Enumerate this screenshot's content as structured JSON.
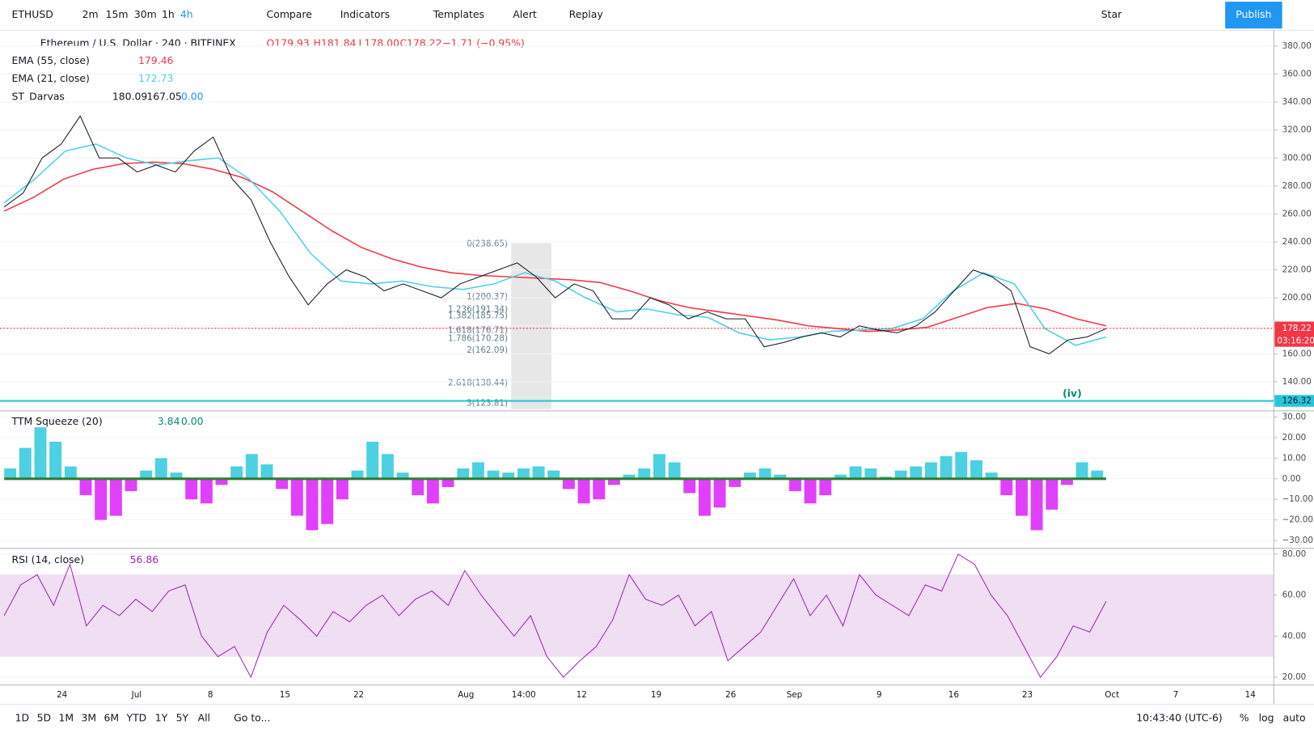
{
  "toolbar": {
    "symbol": "ETHUSD",
    "intervals": [
      "2m",
      "15m",
      "30m",
      "1h",
      "4h"
    ],
    "compare": "Compare",
    "indicators": "Indicators",
    "templates": "Templates",
    "alert": "Alert",
    "replay": "Replay",
    "star": "Star",
    "publish": "Publish"
  },
  "legend": {
    "title": "Ethereum / U.S. Dollar · 240 · BITFINEX",
    "open": "O179.93",
    "high": "H181.84",
    "low": "L178.00",
    "close": "C178.22",
    "change": "−1.71 (−0.95%)",
    "ema55_label": "EMA (55, close)",
    "ema55_value": 179.46,
    "ema21_label": "EMA (21, close)",
    "ema21_value": 172.73,
    "darvas_label": "ST_Darvas",
    "darvas_high": 180.09,
    "darvas_low": 167.05,
    "darvas_third": "0.00"
  },
  "price": {
    "ylim": [
      120.4,
      391.4
    ],
    "yticks": [
      {
        "value": 380,
        "label": "380.00"
      },
      {
        "value": 360,
        "label": "360.00"
      },
      {
        "value": 340,
        "label": "340.00"
      },
      {
        "value": 320,
        "label": "320.00"
      },
      {
        "value": 300,
        "label": "300.00"
      },
      {
        "value": 280,
        "label": "280.00"
      },
      {
        "value": 260,
        "label": "260.00"
      },
      {
        "value": 240,
        "label": "240.00"
      },
      {
        "value": 220,
        "label": "220.00"
      },
      {
        "value": 200,
        "label": "200.00"
      },
      {
        "value": 180,
        "label": "180.00"
      },
      {
        "value": 160,
        "label": "160.00"
      },
      {
        "value": 140,
        "label": "140.00"
      }
    ],
    "close": [
      265,
      275,
      300,
      310,
      330,
      300,
      300,
      290,
      295,
      290,
      305,
      315,
      285,
      270,
      240,
      215,
      195,
      210,
      220,
      215,
      205,
      210,
      205,
      200,
      210,
      215,
      220,
      225,
      215,
      200,
      210,
      205,
      185,
      185,
      200,
      195,
      185,
      190,
      185,
      185,
      165,
      168,
      172,
      175,
      172,
      180,
      177,
      175,
      180,
      190,
      205,
      220,
      215,
      205,
      165,
      160,
      170,
      172,
      178
    ],
    "close_color": "#131722",
    "ema55": [
      262,
      272,
      285,
      292,
      296,
      297,
      296,
      292,
      286,
      276,
      262,
      248,
      236,
      228,
      222,
      218,
      216,
      215,
      214,
      213,
      211,
      205,
      198,
      193,
      190,
      187,
      184,
      180,
      178,
      176,
      177,
      179,
      186,
      193,
      196,
      192,
      185,
      180
    ],
    "ema55_color": "#f23645",
    "ema21": [
      268,
      285,
      305,
      310,
      300,
      295,
      298,
      300,
      285,
      262,
      232,
      212,
      210,
      212,
      208,
      206,
      210,
      218,
      212,
      200,
      190,
      192,
      188,
      186,
      175,
      170,
      172,
      176,
      177,
      178,
      185,
      205,
      218,
      210,
      178,
      166,
      172
    ],
    "ema21_color": "#4dd0e1",
    "last_price": {
      "value": 178.22,
      "label": "178.22"
    },
    "countdown": "03:16:20",
    "support": {
      "value": 126.32,
      "label": "126.32"
    },
    "fib_labels": [
      "0(238.65)",
      "1(200.37)",
      "1.236(191.34)",
      "1.382(185.75)",
      "1.618(176.71)",
      "1.786(170.28)",
      "2(162.09)",
      "2.618(138.44)",
      "3(123.81)"
    ],
    "wave_label": "(iv)"
  },
  "xaxis": [
    "24",
    "Jul",
    "8",
    "15",
    "22",
    "Aug",
    "14:00",
    "12",
    "19",
    "26",
    "Sep",
    "9",
    "16",
    "23",
    "Oct",
    "7",
    "14"
  ],
  "squeeze": {
    "label": "TTM Squeeze (20)",
    "value": 3.84,
    "second": "0.00",
    "ylim": [
      -33,
      33
    ],
    "yticks": [
      {
        "value": 30,
        "label": "30.00"
      },
      {
        "value": 20,
        "label": "20.00"
      },
      {
        "value": 10,
        "label": "10.00"
      },
      {
        "value": 0,
        "label": "0.00"
      },
      {
        "value": -10,
        "label": "−10.00"
      },
      {
        "value": -20,
        "label": "−20.00"
      },
      {
        "value": -30,
        "label": "−30.00"
      }
    ],
    "values": [
      5,
      15,
      25,
      18,
      6,
      -8,
      -20,
      -18,
      -6,
      4,
      10,
      3,
      -10,
      -12,
      -3,
      6,
      12,
      7,
      -5,
      -18,
      -25,
      -22,
      -10,
      4,
      18,
      12,
      3,
      -8,
      -12,
      -4,
      5,
      8,
      4,
      3,
      5,
      6,
      4,
      -5,
      -12,
      -10,
      -3,
      2,
      5,
      12,
      8,
      -7,
      -18,
      -14,
      -4,
      3,
      5,
      2,
      -6,
      -12,
      -8,
      2,
      6,
      5,
      1,
      4,
      6,
      8,
      11,
      13,
      9,
      3,
      -8,
      -18,
      -25,
      -15,
      -3,
      8,
      4
    ],
    "pos_color": "#4dd0e1",
    "neg_color": "#e040fb"
  },
  "rsi": {
    "label": "RSI (14, close)",
    "value": 56.86,
    "ylim": [
      17,
      82
    ],
    "band": [
      30,
      70
    ],
    "yticks": [
      {
        "value": 80,
        "label": "80.00"
      },
      {
        "value": 60,
        "label": "60.00"
      },
      {
        "value": 40,
        "label": "40.00"
      },
      {
        "value": 20,
        "label": "20.00"
      }
    ],
    "values": [
      50,
      65,
      70,
      55,
      75,
      45,
      55,
      50,
      58,
      52,
      62,
      65,
      40,
      30,
      35,
      20,
      42,
      55,
      48,
      40,
      52,
      47,
      55,
      60,
      50,
      58,
      62,
      55,
      72,
      60,
      50,
      40,
      50,
      30,
      20,
      28,
      35,
      48,
      70,
      58,
      55,
      60,
      45,
      52,
      28,
      35,
      42,
      55,
      68,
      50,
      60,
      45,
      70,
      60,
      55,
      50,
      65,
      62,
      80,
      75,
      60,
      50,
      35,
      20,
      30,
      45,
      42,
      57
    ],
    "color": "#9c27b0"
  },
  "bottom": {
    "ranges": [
      "1D",
      "5D",
      "1M",
      "3M",
      "6M",
      "YTD",
      "1Y",
      "5Y",
      "All"
    ],
    "goto": "Go to...",
    "time": "10:43:40 (UTC-6)",
    "percent": "%",
    "log": "log",
    "auto": "auto"
  }
}
